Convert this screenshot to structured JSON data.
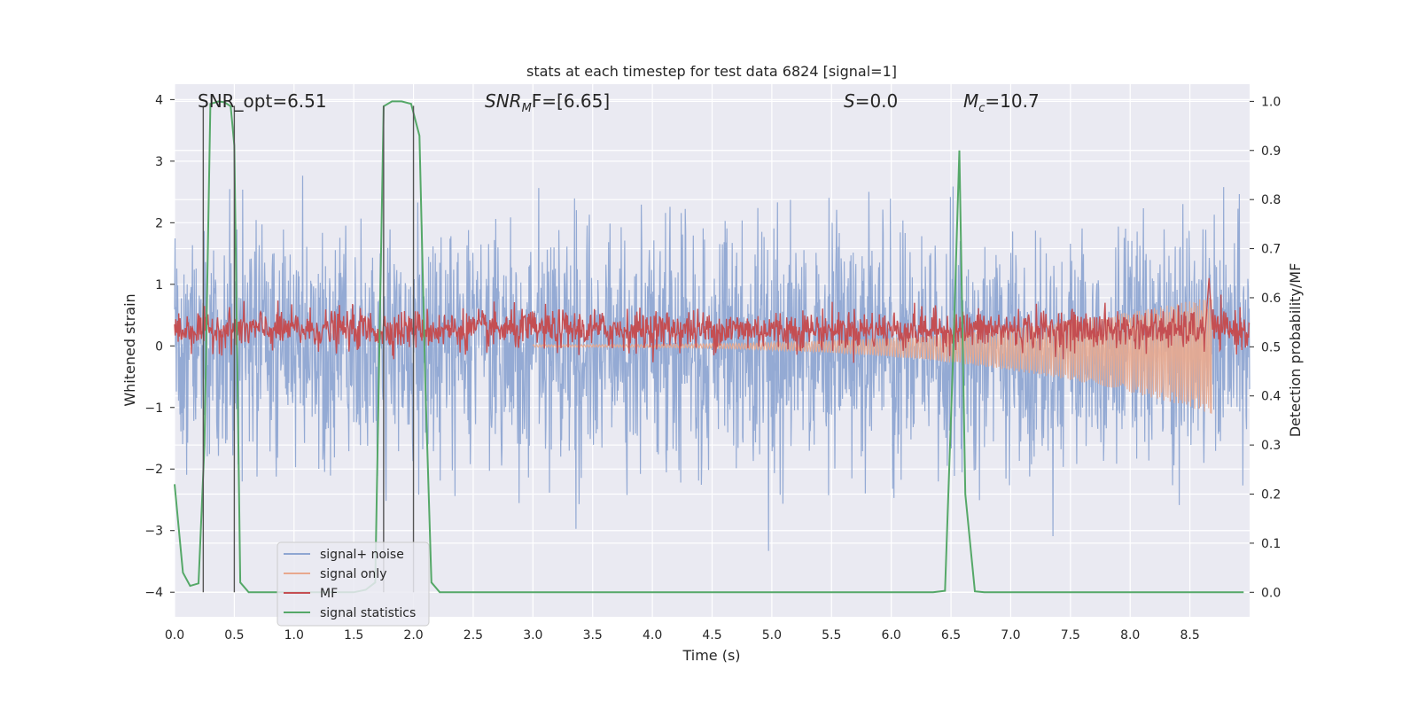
{
  "chart_data": {
    "type": "line",
    "title": "stats at each timestep for test data 6824 [signal=1]",
    "xlabel": "Time (s)",
    "ylabel_left": "Whitened strain",
    "ylabel_right": "Detection probability/MF",
    "xlim": [
      0,
      9.0
    ],
    "ylim_left": [
      -4.4,
      4.25
    ],
    "ylim_right": [
      -0.05,
      1.035
    ],
    "x_ticks": [
      "0.0",
      "0.5",
      "1.0",
      "1.5",
      "2.0",
      "2.5",
      "3.0",
      "3.5",
      "4.0",
      "4.5",
      "5.0",
      "5.5",
      "6.0",
      "6.5",
      "7.0",
      "7.5",
      "8.0",
      "8.5"
    ],
    "y_ticks_left": [
      "−4",
      "−3",
      "−2",
      "−1",
      "0",
      "1",
      "2",
      "3",
      "4"
    ],
    "y_ticks_right": [
      "0.0",
      "0.1",
      "0.2",
      "0.3",
      "0.4",
      "0.5",
      "0.6",
      "0.7",
      "0.8",
      "0.9",
      "1.0"
    ],
    "grid": true,
    "legend_position": "lower-left",
    "annotations": {
      "snr_opt": "SNR_opt=6.51",
      "snr_mf_label": "SNR",
      "snr_mf_sub": "M",
      "snr_mf_rest": "F=[6.65]",
      "s_label": "S",
      "s_rest": "=0.0",
      "mc_label": "M",
      "mc_sub": "c",
      "mc_rest": "=10.7"
    },
    "vertical_markers_x": [
      0.24,
      0.5,
      1.75,
      2.0
    ],
    "series": [
      {
        "name": "signal+ noise",
        "axis": "left",
        "color": "#8fa6d2",
        "style": "noise",
        "x_range": [
          0,
          9.0
        ],
        "mean": 0.0,
        "std": 0.95
      },
      {
        "name": "signal only",
        "axis": "left",
        "color": "#e8a88e",
        "style": "chirp",
        "x_range": [
          3.0,
          8.68
        ],
        "envelope_start": 0.02,
        "envelope_end": 0.95,
        "peak_x": 8.68,
        "peak_value": -1.1
      },
      {
        "name": "MF",
        "axis": "right",
        "color": "#c44e52",
        "style": "noise",
        "x_range": [
          0,
          9.0
        ],
        "mean": 0.535,
        "std": 0.02,
        "peak_x": 8.66,
        "peak_value": 0.64
      },
      {
        "name": "signal statistics",
        "axis": "right",
        "color": "#55a868",
        "x": [
          0.0,
          0.07,
          0.13,
          0.2,
          0.25,
          0.3,
          0.37,
          0.42,
          0.47,
          0.5,
          0.55,
          0.62,
          0.7,
          1.5,
          1.6,
          1.68,
          1.75,
          1.82,
          1.9,
          1.98,
          2.05,
          2.1,
          2.15,
          2.22,
          2.3,
          6.35,
          6.45,
          6.52,
          6.57,
          6.62,
          6.7,
          6.78,
          8.95
        ],
        "y": [
          0.22,
          0.04,
          0.013,
          0.018,
          0.3,
          0.995,
          1.0,
          0.998,
          0.99,
          0.91,
          0.02,
          0.0,
          0.0,
          0.0,
          0.005,
          0.02,
          0.99,
          1.0,
          1.0,
          0.995,
          0.93,
          0.42,
          0.02,
          0.0,
          0.0,
          0.0,
          0.003,
          0.5,
          0.9,
          0.2,
          0.002,
          0.0,
          0.0
        ]
      }
    ]
  }
}
